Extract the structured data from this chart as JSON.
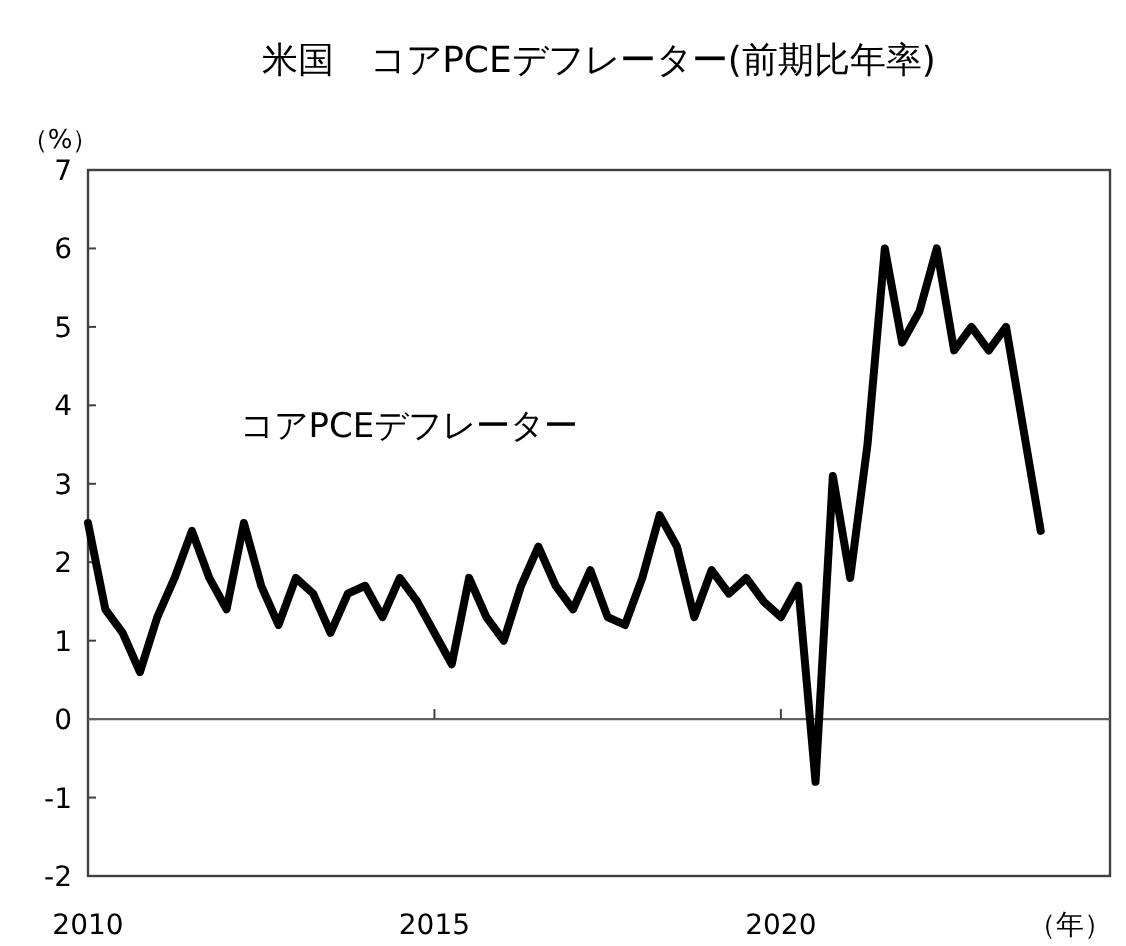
{
  "chart_data": {
    "type": "line",
    "title": "米国　コアPCEデフレーター(前期比年率)",
    "ylabel": "（%）",
    "xlabel": "（年）",
    "x": [
      2010,
      2010.25,
      2010.5,
      2010.75,
      2011,
      2011.25,
      2011.5,
      2011.75,
      2012,
      2012.25,
      2012.5,
      2012.75,
      2013,
      2013.25,
      2013.5,
      2013.75,
      2014,
      2014.25,
      2014.5,
      2014.75,
      2015,
      2015.25,
      2015.5,
      2015.75,
      2016,
      2016.25,
      2016.5,
      2016.75,
      2017,
      2017.25,
      2017.5,
      2017.75,
      2018,
      2018.25,
      2018.5,
      2018.75,
      2019,
      2019.25,
      2019.5,
      2019.75,
      2020,
      2020.25,
      2020.5,
      2020.75,
      2021,
      2021.25,
      2021.5,
      2021.75,
      2022,
      2022.25,
      2022.5,
      2022.75,
      2023,
      2023.25,
      2023.5,
      2023.75
    ],
    "series": [
      {
        "name": "コアPCEデフレーター",
        "color": "#000000",
        "values": [
          2.5,
          1.4,
          1.1,
          0.6,
          1.3,
          1.8,
          2.4,
          1.8,
          1.4,
          2.5,
          1.7,
          1.2,
          1.8,
          1.6,
          1.1,
          1.6,
          1.7,
          1.3,
          1.8,
          1.5,
          1.1,
          0.7,
          1.8,
          1.3,
          1.0,
          1.7,
          2.2,
          1.7,
          1.4,
          1.9,
          1.3,
          1.2,
          1.8,
          2.6,
          2.2,
          1.3,
          1.9,
          1.6,
          1.8,
          1.5,
          1.3,
          1.7,
          -0.8,
          3.1,
          1.8,
          3.5,
          6.0,
          4.8,
          5.2,
          6.0,
          4.7,
          5.0,
          4.7,
          5.0,
          3.7,
          2.4
        ]
      }
    ],
    "xlim": [
      2010,
      2024.75
    ],
    "ylim": [
      -2,
      7
    ],
    "xticks": [
      2010,
      2015,
      2020
    ],
    "yticks": [
      -2,
      -1,
      0,
      1,
      2,
      3,
      4,
      5,
      6,
      7
    ],
    "marker": "none",
    "line_style": "solid"
  }
}
